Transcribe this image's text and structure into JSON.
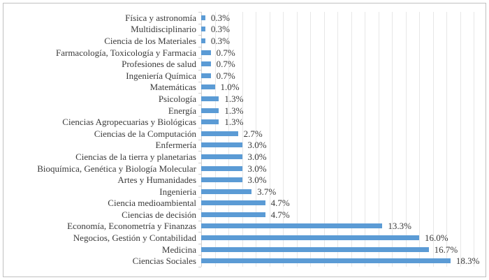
{
  "chart_data": {
    "type": "bar",
    "orientation": "horizontal",
    "title": "",
    "xlabel": "",
    "ylabel": "",
    "xlim": [
      0,
      20
    ],
    "gridline_step_percent": 1,
    "grid_on": true,
    "legend": null,
    "categories": [
      "Física y astronomía",
      "Multidisciplinario",
      "Ciencia de los Materiales",
      "Farmacología, Toxicología y Farmacia",
      "Profesiones de salud",
      "Ingeniería Química",
      "Matemáticas",
      "Psicología",
      "Energía",
      "Ciencias Agropecuarias y Biológicas",
      "Ciencias de la Computación",
      "Enfermería",
      "Ciencias de la tierra y planetarias",
      "Bioquímica, Genética y Biología Molecular",
      "Artes y Humanidades",
      "Ingenieria",
      "Ciencia medioambiental",
      "Ciencias de decisión",
      "Economía, Econometría y Finanzas",
      "Negocios, Gestión y Contabilidad",
      "Medicina",
      "Ciencias Sociales"
    ],
    "values": [
      0.3,
      0.3,
      0.3,
      0.7,
      0.7,
      0.7,
      1.0,
      1.3,
      1.3,
      1.3,
      2.7,
      3.0,
      3.0,
      3.0,
      3.0,
      3.7,
      4.7,
      4.7,
      13.3,
      16.0,
      16.7,
      18.3
    ],
    "value_labels": [
      "0.3%",
      "0.3%",
      "0.3%",
      "0.7%",
      "0.7%",
      "0.7%",
      "1.0%",
      "1.3%",
      "1.3%",
      "1.3%",
      "2.7%",
      "3.0%",
      "3.0%",
      "3.0%",
      "3.0%",
      "3.7%",
      "4.7%",
      "4.7%",
      "13.3%",
      "16.0%",
      "16.7%",
      "18.3%"
    ],
    "colors": {
      "bar": "#5b9bd5",
      "gridline": "#e7e7e7",
      "axis": "#cfcfcf",
      "text": "#3a3a3a",
      "border": "#c1c1c1",
      "background": "#ffffff"
    }
  }
}
